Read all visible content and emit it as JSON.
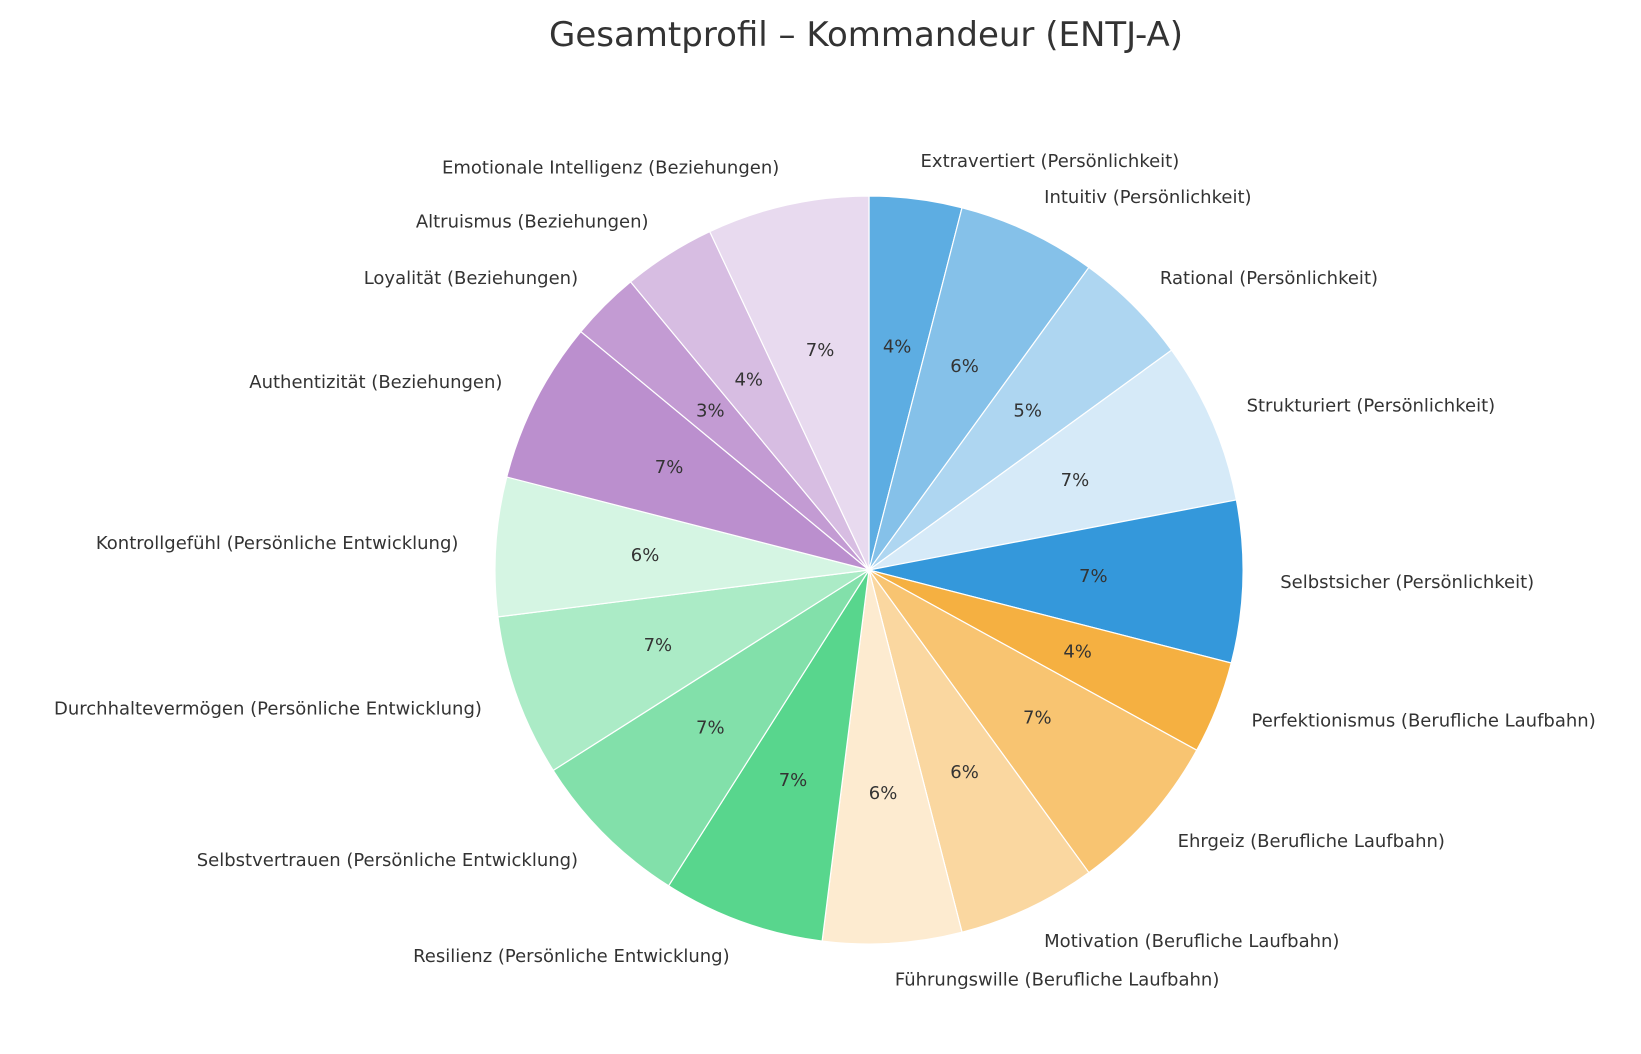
{
  "chart_data": {
    "type": "pie",
    "title": "Gesamtprofil – Kommandeur (ENTJ-A)",
    "slices": [
      {
        "label": "Extravertiert (Persönlichkeit)",
        "value": 4,
        "pct_label": "4%",
        "color": "#5dade2"
      },
      {
        "label": "Intuitiv (Persönlichkeit)",
        "value": 6,
        "pct_label": "6%",
        "color": "#85c1e9"
      },
      {
        "label": "Rational (Persönlichkeit)",
        "value": 5,
        "pct_label": "5%",
        "color": "#aed6f1"
      },
      {
        "label": "Strukturiert (Persönlichkeit)",
        "value": 7,
        "pct_label": "7%",
        "color": "#d6eaf8"
      },
      {
        "label": "Selbstsicher (Persönlichkeit)",
        "value": 7,
        "pct_label": "7%",
        "color": "#3498db"
      },
      {
        "label": "Perfektionismus (Berufliche Laufbahn)",
        "value": 4,
        "pct_label": "4%",
        "color": "#f5b041"
      },
      {
        "label": "Ehrgeiz (Berufliche Laufbahn)",
        "value": 7,
        "pct_label": "7%",
        "color": "#f8c471"
      },
      {
        "label": "Motivation (Berufliche Laufbahn)",
        "value": 6,
        "pct_label": "6%",
        "color": "#fad7a0"
      },
      {
        "label": "Führungswille (Berufliche Laufbahn)",
        "value": 6,
        "pct_label": "6%",
        "color": "#fdebd0"
      },
      {
        "label": "Resilienz (Persönliche Entwicklung)",
        "value": 7,
        "pct_label": "7%",
        "color": "#58d68d"
      },
      {
        "label": "Selbstvertrauen (Persönliche Entwicklung)",
        "value": 7,
        "pct_label": "7%",
        "color": "#82e0aa"
      },
      {
        "label": "Durchhaltevermögen (Persönliche Entwicklung)",
        "value": 7,
        "pct_label": "7%",
        "color": "#abebc6"
      },
      {
        "label": "Kontrollgefühl (Persönliche Entwicklung)",
        "value": 6,
        "pct_label": "6%",
        "color": "#d5f5e3"
      },
      {
        "label": "Authentizität (Beziehungen)",
        "value": 7,
        "pct_label": "7%",
        "color": "#bb8fce"
      },
      {
        "label": "Loyalität (Beziehungen)",
        "value": 3,
        "pct_label": "3%",
        "color": "#c39bd3"
      },
      {
        "label": "Altruismus (Beziehungen)",
        "value": 4,
        "pct_label": "4%",
        "color": "#d7bde2"
      },
      {
        "label": "Emotionale Intelligenz (Beziehungen)",
        "value": 7,
        "pct_label": "7%",
        "color": "#e8daef"
      }
    ],
    "start_angle": "top",
    "direction": "clockwise"
  }
}
